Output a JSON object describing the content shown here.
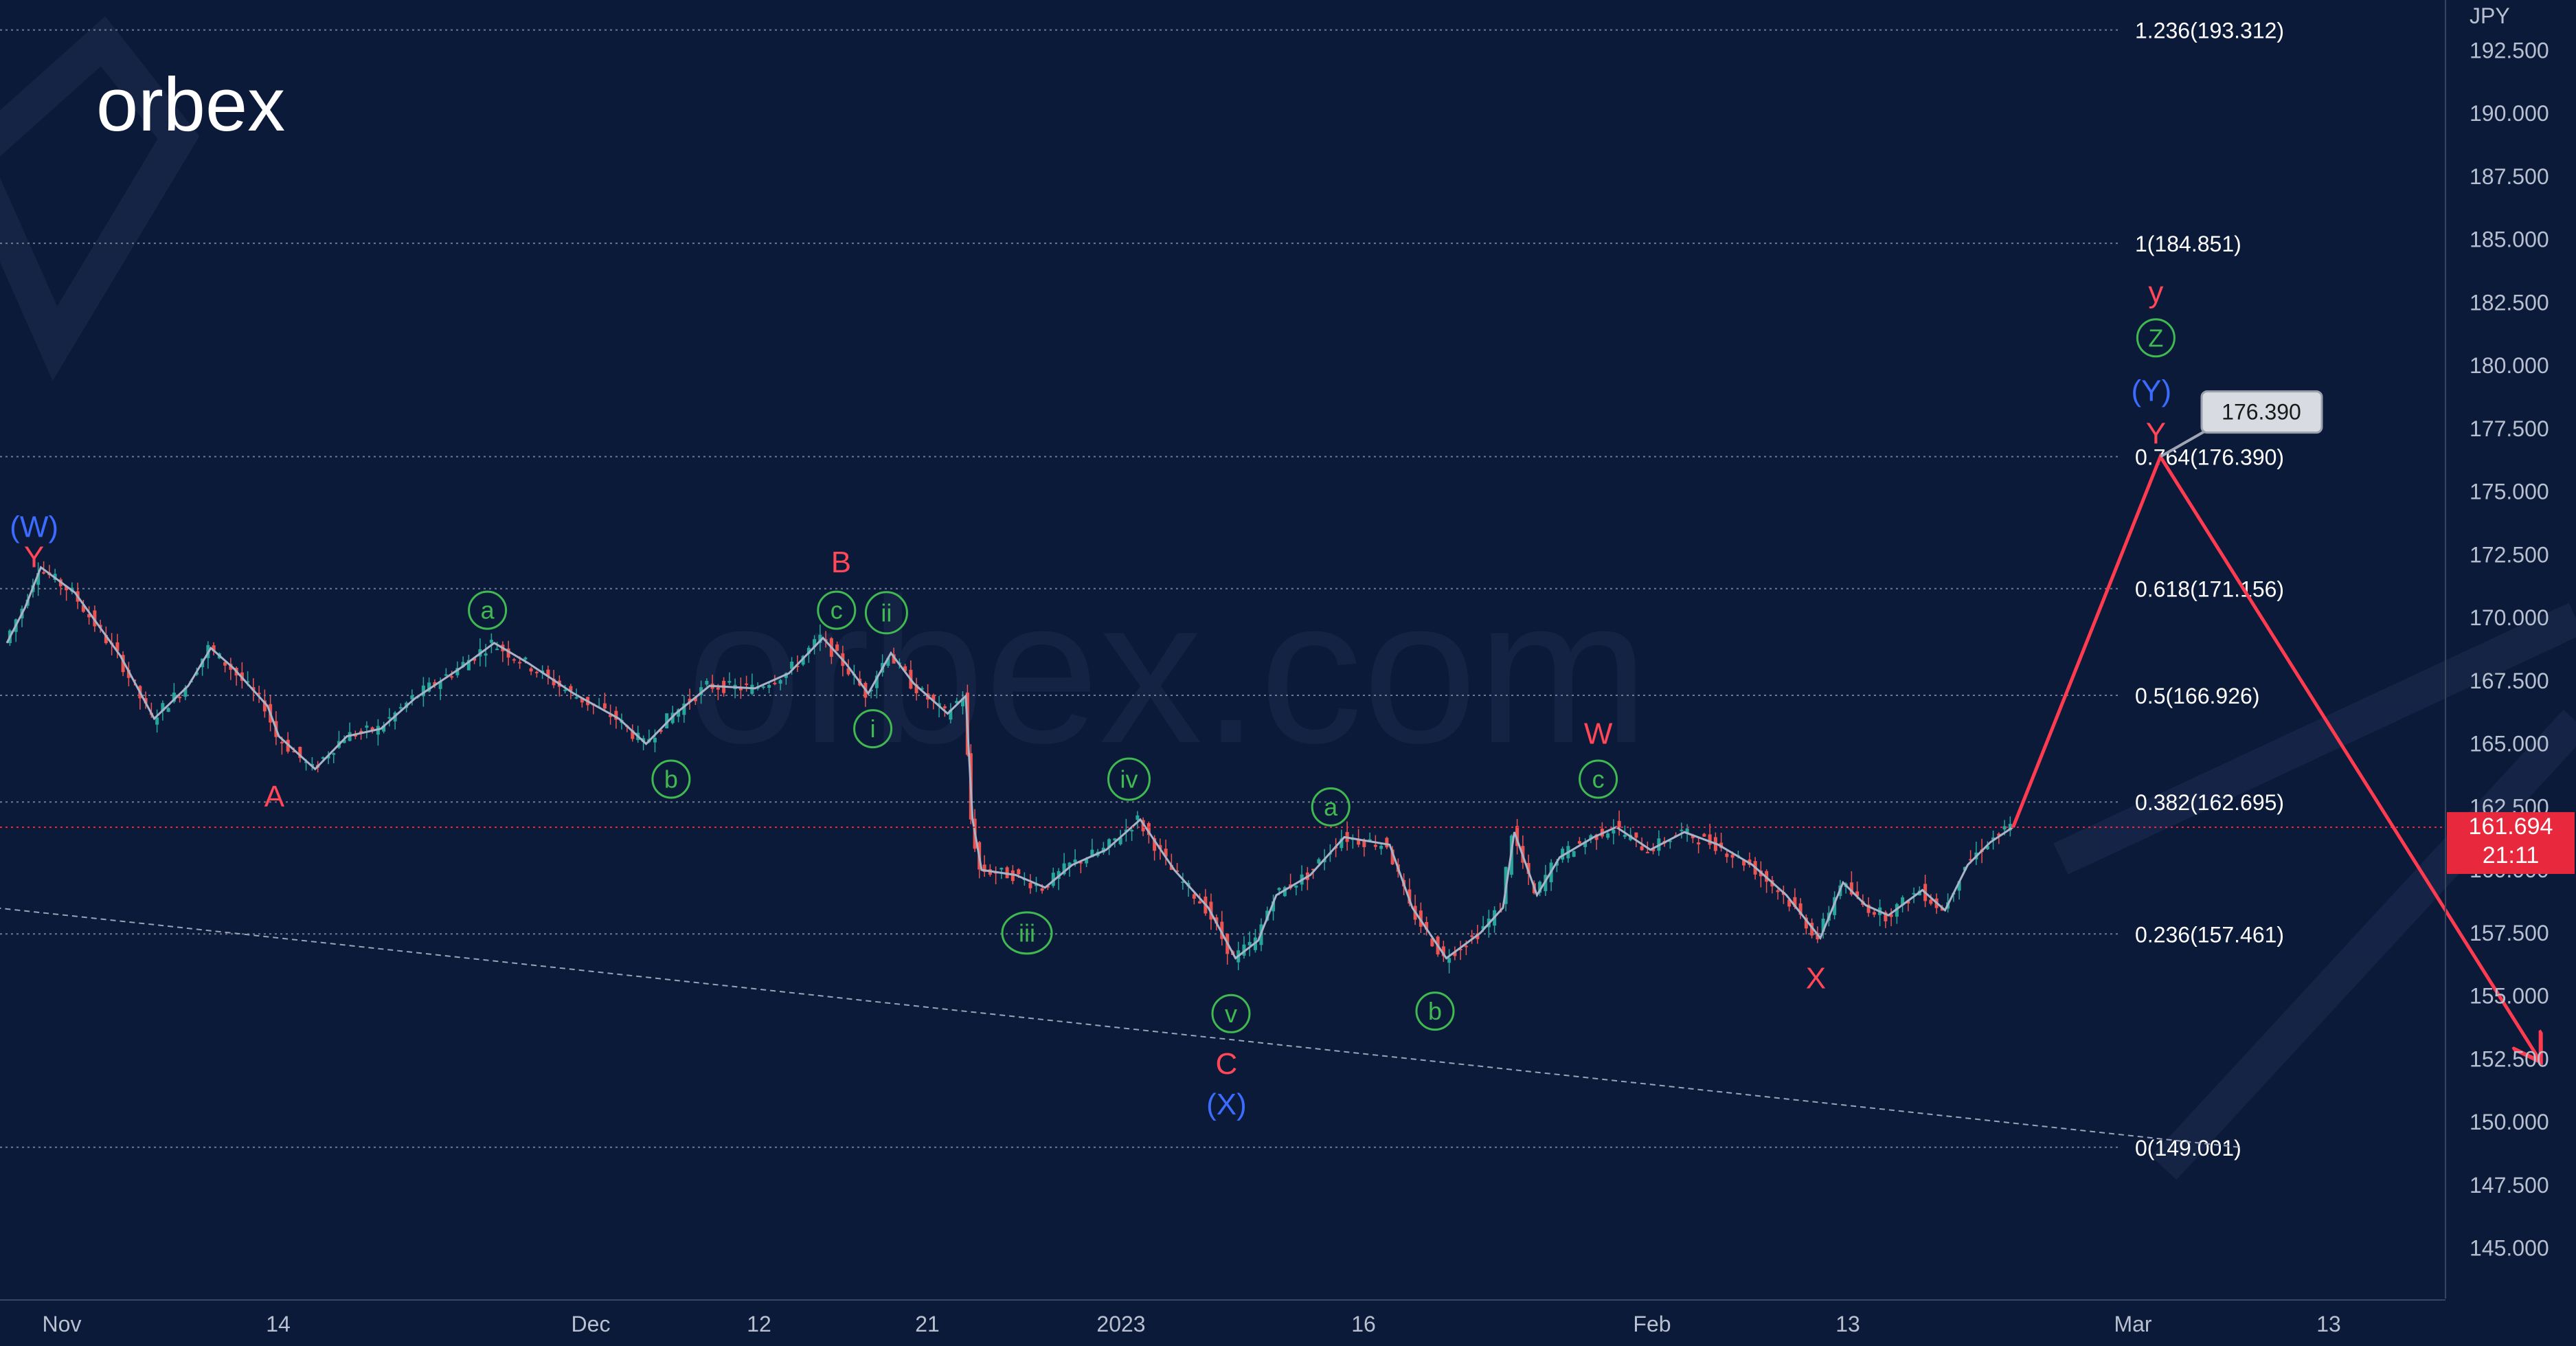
{
  "brand": {
    "logo_text": "orbex",
    "watermark_text": "orbex.com"
  },
  "colors": {
    "background": "#0c1a3a",
    "fib_line": "#9aa3b5",
    "price_tag": "#e8283c",
    "forecast": "#ff3b50",
    "wave_red": "#ff4757",
    "wave_green": "#3fb950",
    "wave_blue": "#3b6cff",
    "candle_up": "#26a69a",
    "candle_down": "#ef5350"
  },
  "chart_data": {
    "type": "line",
    "currency": "JPY",
    "ylim": [
      143.0,
      194.5
    ],
    "y_ticks": [
      "145.000",
      "147.500",
      "150.000",
      "152.500",
      "155.000",
      "157.500",
      "160.000",
      "162.500",
      "165.000",
      "167.500",
      "170.000",
      "172.500",
      "175.000",
      "177.500",
      "180.000",
      "182.500",
      "185.000",
      "187.500",
      "190.000",
      "192.500"
    ],
    "x_ticks": [
      "Nov",
      "14",
      "Dec",
      "12",
      "21",
      "2023",
      "16",
      "Feb",
      "13",
      "Mar",
      "13"
    ],
    "fib_levels": [
      {
        "label": "1.236(193.312)",
        "value": 193.312
      },
      {
        "label": "1(184.851)",
        "value": 184.851
      },
      {
        "label": "0.764(176.390)",
        "value": 176.39
      },
      {
        "label": "0.618(171.156)",
        "value": 171.156
      },
      {
        "label": "0.5(166.926)",
        "value": 166.926
      },
      {
        "label": "0.382(162.695)",
        "value": 162.695
      },
      {
        "label": "0.236(157.461)",
        "value": 157.461
      },
      {
        "label": "0(149.001)",
        "value": 149.001
      }
    ],
    "current_price": {
      "value": "161.694",
      "time": "21:11",
      "numeric": 161.694
    },
    "target_callout": {
      "label": "176.390",
      "value": 176.39
    },
    "price_path": [
      {
        "x": 0,
        "y": 169.0
      },
      {
        "x": 0.8,
        "y": 170.4
      },
      {
        "x": 1.5,
        "y": 172.0
      },
      {
        "x": 3,
        "y": 171.0
      },
      {
        "x": 5,
        "y": 168.5
      },
      {
        "x": 6.5,
        "y": 166.0
      },
      {
        "x": 8,
        "y": 167.3
      },
      {
        "x": 9,
        "y": 168.8
      },
      {
        "x": 10,
        "y": 168.0
      },
      {
        "x": 11.5,
        "y": 166.5
      },
      {
        "x": 12,
        "y": 165.3
      },
      {
        "x": 13.6,
        "y": 164.0
      },
      {
        "x": 15,
        "y": 165.3
      },
      {
        "x": 16.5,
        "y": 165.6
      },
      {
        "x": 18,
        "y": 166.8
      },
      {
        "x": 20,
        "y": 168.0
      },
      {
        "x": 21.5,
        "y": 169.0
      },
      {
        "x": 23,
        "y": 168.2
      },
      {
        "x": 25,
        "y": 167.0
      },
      {
        "x": 27,
        "y": 166.0
      },
      {
        "x": 28.2,
        "y": 165.0
      },
      {
        "x": 29.5,
        "y": 166.2
      },
      {
        "x": 31,
        "y": 167.3
      },
      {
        "x": 33,
        "y": 167.2
      },
      {
        "x": 34.5,
        "y": 167.8
      },
      {
        "x": 36,
        "y": 169.2
      },
      {
        "x": 37,
        "y": 168.2
      },
      {
        "x": 38,
        "y": 167.0
      },
      {
        "x": 39,
        "y": 168.6
      },
      {
        "x": 40,
        "y": 167.4
      },
      {
        "x": 41.5,
        "y": 166.2
      },
      {
        "x": 42.3,
        "y": 166.9
      },
      {
        "x": 42.6,
        "y": 162.0
      },
      {
        "x": 43,
        "y": 160.0
      },
      {
        "x": 44.5,
        "y": 159.8
      },
      {
        "x": 45.8,
        "y": 159.3
      },
      {
        "x": 47,
        "y": 160.2
      },
      {
        "x": 48.5,
        "y": 160.8
      },
      {
        "x": 50,
        "y": 162.0
      },
      {
        "x": 51.5,
        "y": 160.0
      },
      {
        "x": 53,
        "y": 158.5
      },
      {
        "x": 54.2,
        "y": 156.5
      },
      {
        "x": 55.2,
        "y": 157.2
      },
      {
        "x": 56,
        "y": 159.0
      },
      {
        "x": 57.5,
        "y": 159.8
      },
      {
        "x": 59,
        "y": 161.3
      },
      {
        "x": 61,
        "y": 161.0
      },
      {
        "x": 62,
        "y": 158.5
      },
      {
        "x": 63.5,
        "y": 156.5
      },
      {
        "x": 65,
        "y": 157.5
      },
      {
        "x": 66,
        "y": 158.5
      },
      {
        "x": 66.5,
        "y": 161.5
      },
      {
        "x": 67.5,
        "y": 159.0
      },
      {
        "x": 68.5,
        "y": 160.5
      },
      {
        "x": 70,
        "y": 161.3
      },
      {
        "x": 71,
        "y": 161.7
      },
      {
        "x": 72.5,
        "y": 160.8
      },
      {
        "x": 74,
        "y": 161.5
      },
      {
        "x": 75.5,
        "y": 161.0
      },
      {
        "x": 77,
        "y": 160.2
      },
      {
        "x": 78.5,
        "y": 159.0
      },
      {
        "x": 80,
        "y": 157.3
      },
      {
        "x": 81,
        "y": 159.5
      },
      {
        "x": 82,
        "y": 158.6
      },
      {
        "x": 83,
        "y": 158.2
      },
      {
        "x": 84.5,
        "y": 159.2
      },
      {
        "x": 85.5,
        "y": 158.4
      },
      {
        "x": 86.5,
        "y": 160.2
      },
      {
        "x": 87.5,
        "y": 161.1
      },
      {
        "x": 88.5,
        "y": 161.7
      }
    ],
    "forecast_path": [
      {
        "x": 88.5,
        "y": 161.694
      },
      {
        "x": 95.0,
        "y": 176.39
      },
      {
        "x": 111.7,
        "y": 152.5
      }
    ],
    "trendline": [
      {
        "x": -0.5,
        "y": 158.5
      },
      {
        "x": 98.5,
        "y": 149.0
      }
    ],
    "wave_labels": [
      {
        "text": "(W)",
        "x": 1.2,
        "y": 173.6,
        "color": "blue",
        "circled": false
      },
      {
        "text": "Y",
        "x": 1.2,
        "y": 172.4,
        "color": "red",
        "circled": false
      },
      {
        "text": "A",
        "x": 11.8,
        "y": 162.9,
        "color": "red",
        "circled": false
      },
      {
        "text": "a",
        "x": 21.2,
        "y": 170.3,
        "color": "green",
        "circled": true
      },
      {
        "text": "b",
        "x": 29.3,
        "y": 163.6,
        "color": "green",
        "circled": true
      },
      {
        "text": "B",
        "x": 36.8,
        "y": 172.2,
        "color": "red",
        "circled": false
      },
      {
        "text": "c",
        "x": 36.6,
        "y": 170.3,
        "color": "green",
        "circled": true
      },
      {
        "text": "ii",
        "x": 38.8,
        "y": 170.2,
        "color": "green",
        "circled": true
      },
      {
        "text": "i",
        "x": 38.2,
        "y": 165.6,
        "color": "green",
        "circled": true
      },
      {
        "text": "iii",
        "x": 45.0,
        "y": 157.5,
        "color": "green",
        "circled": true
      },
      {
        "text": "iv",
        "x": 49.5,
        "y": 163.6,
        "color": "green",
        "circled": true
      },
      {
        "text": "v",
        "x": 54.0,
        "y": 154.3,
        "color": "green",
        "circled": true
      },
      {
        "text": "C",
        "x": 53.8,
        "y": 152.3,
        "color": "red",
        "circled": false
      },
      {
        "text": "(X)",
        "x": 53.8,
        "y": 150.7,
        "color": "blue",
        "circled": false
      },
      {
        "text": "a",
        "x": 58.4,
        "y": 162.5,
        "color": "green",
        "circled": true
      },
      {
        "text": "b",
        "x": 63.0,
        "y": 154.4,
        "color": "green",
        "circled": true
      },
      {
        "text": "W",
        "x": 70.2,
        "y": 165.4,
        "color": "red",
        "circled": false
      },
      {
        "text": "c",
        "x": 70.2,
        "y": 163.6,
        "color": "green",
        "circled": true
      },
      {
        "text": "X",
        "x": 79.8,
        "y": 155.7,
        "color": "red",
        "circled": false
      },
      {
        "text": "y",
        "x": 94.8,
        "y": 182.9,
        "color": "red",
        "circled": false
      },
      {
        "text": "Z",
        "x": 94.8,
        "y": 181.1,
        "color": "green",
        "circled": true
      },
      {
        "text": "(Y)",
        "x": 94.6,
        "y": 179.0,
        "color": "blue",
        "circled": false
      },
      {
        "text": "Y",
        "x": 94.8,
        "y": 177.3,
        "color": "red",
        "circled": false
      }
    ]
  }
}
